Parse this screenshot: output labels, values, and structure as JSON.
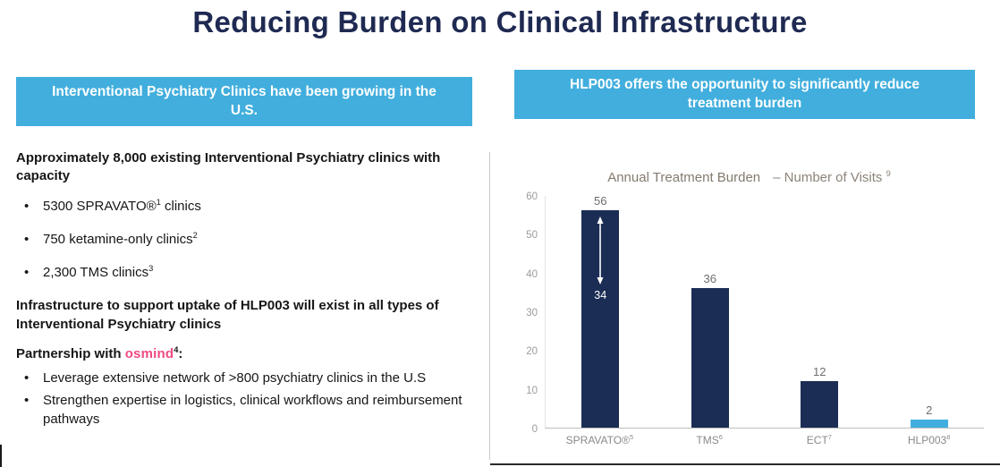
{
  "title": "Reducing Burden on Clinical Infrastructure",
  "colors": {
    "accent_blue": "#41aedd",
    "navy": "#1b2d55",
    "brand_pink": "#ef4b81",
    "title_navy": "#1f2a52",
    "chart_title_gray": "#837a6f"
  },
  "left": {
    "banner": "Interventional Psychiatry Clinics have been growing in the U.S.",
    "capacity_heading": "Approximately 8,000 existing Interventional Psychiatry clinics with capacity",
    "clinic_bullets": [
      {
        "pre": "5300 SPRAVATO®",
        "sup": "1",
        "post": " clinics"
      },
      {
        "pre": "750 ketamine-only clinics",
        "sup": "2",
        "post": ""
      },
      {
        "pre": "2,300 TMS clinics",
        "sup": "3",
        "post": ""
      }
    ],
    "infrastructure_para": "Infrastructure to support uptake of HLP003 will exist in all types of Interventional Psychiatry clinics",
    "partnership": {
      "prefix": "Partnership with ",
      "brand": "osmind",
      "sup": "4",
      "suffix": ":"
    },
    "partnership_bullets": [
      "Leverage extensive network of >800 psychiatry clinics in the U.S",
      "Strengthen expertise in logistics, clinical workflows and reimbursement pathways"
    ]
  },
  "right": {
    "banner": "HLP003 offers the opportunity to significantly reduce treatment burden"
  },
  "chart_data": {
    "type": "bar",
    "title": "Annual Treatment Burden – Number of Visits",
    "title_main": "Annual Treatment Burden",
    "title_sub": "– Number of Visits",
    "title_sup": "9",
    "categories": [
      "SPRAVATO®",
      "TMS",
      "ECT",
      "HLP003"
    ],
    "category_sups": [
      "5",
      "6",
      "7",
      "8"
    ],
    "values": [
      56,
      36,
      12,
      2
    ],
    "bar_colors": [
      "#1b2d55",
      "#1b2d55",
      "#1b2d55",
      "#41aedd"
    ],
    "xlabel": "",
    "ylabel": "",
    "ylim": [
      0,
      60
    ],
    "yticks": [
      0,
      10,
      20,
      30,
      40,
      50,
      60
    ],
    "grid": false,
    "legend": null,
    "inner_annotation": {
      "bar_index": 0,
      "label": "34",
      "icon": "double-arrow"
    }
  }
}
